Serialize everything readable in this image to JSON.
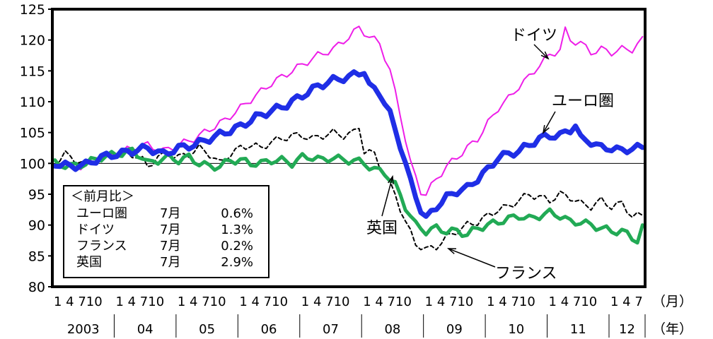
{
  "chart_data": {
    "type": "line",
    "title": "",
    "xlabel": "（月）",
    "ylabel": "",
    "ylim": [
      80,
      125
    ],
    "yticks": [
      80,
      85,
      90,
      95,
      100,
      105,
      110,
      115,
      120,
      125
    ],
    "reference_line": 100,
    "x_unit_month": "（月）",
    "x_unit_year": "（年）",
    "month_tick_label": "1 4 710",
    "month_tick_label_last": "1 4 7",
    "years": [
      "2003",
      "04",
      "05",
      "06",
      "07",
      "08",
      "09",
      "10",
      "11",
      "12"
    ],
    "x_start": "2003-01",
    "x_end": "2012-07",
    "grid": false,
    "colors": {
      "euro": "#1f2ee6",
      "germany": "#ee1ee8",
      "france": "#000000",
      "uk": "#22aa55"
    },
    "series": [
      {
        "name": "ユーロ圏",
        "key": "euro",
        "anchors": [
          [
            0,
            100.0
          ],
          [
            3,
            99.5
          ],
          [
            6,
            99.8
          ],
          [
            9,
            101.0
          ],
          [
            12,
            101.5
          ],
          [
            15,
            102.0
          ],
          [
            18,
            102.5
          ],
          [
            21,
            101.5
          ],
          [
            24,
            102.5
          ],
          [
            27,
            103.0
          ],
          [
            30,
            104.0
          ],
          [
            33,
            105.0
          ],
          [
            36,
            106.0
          ],
          [
            39,
            107.5
          ],
          [
            42,
            108.5
          ],
          [
            45,
            109.5
          ],
          [
            48,
            111.0
          ],
          [
            51,
            112.5
          ],
          [
            54,
            113.5
          ],
          [
            57,
            114.0
          ],
          [
            60,
            115.0
          ],
          [
            61,
            112.5
          ],
          [
            63,
            111.5
          ],
          [
            65,
            108.0
          ],
          [
            67,
            103.0
          ],
          [
            69,
            97.0
          ],
          [
            71,
            92.5
          ],
          [
            72,
            91.0
          ],
          [
            74,
            93.0
          ],
          [
            76,
            94.5
          ],
          [
            78,
            95.5
          ],
          [
            80,
            96.0
          ],
          [
            82,
            97.5
          ],
          [
            84,
            99.0
          ],
          [
            86,
            101.0
          ],
          [
            88,
            101.5
          ],
          [
            90,
            102.0
          ],
          [
            92,
            103.0
          ],
          [
            94,
            104.0
          ],
          [
            96,
            104.5
          ],
          [
            98,
            104.5
          ],
          [
            100,
            105.5
          ],
          [
            101,
            106.2
          ],
          [
            102,
            104.0
          ],
          [
            104,
            103.5
          ],
          [
            106,
            102.5
          ],
          [
            108,
            102.5
          ],
          [
            110,
            102.0
          ],
          [
            112,
            102.5
          ],
          [
            114,
            102.5
          ]
        ]
      },
      {
        "name": "ドイツ",
        "key": "germany",
        "anchors": [
          [
            0,
            100.5
          ],
          [
            3,
            99.5
          ],
          [
            6,
            99.5
          ],
          [
            9,
            101.0
          ],
          [
            12,
            101.5
          ],
          [
            15,
            102.5
          ],
          [
            18,
            103.0
          ],
          [
            21,
            102.0
          ],
          [
            24,
            103.0
          ],
          [
            27,
            104.0
          ],
          [
            30,
            105.5
          ],
          [
            33,
            107.0
          ],
          [
            36,
            109.0
          ],
          [
            39,
            111.0
          ],
          [
            42,
            113.0
          ],
          [
            45,
            114.5
          ],
          [
            48,
            116.0
          ],
          [
            51,
            117.5
          ],
          [
            54,
            118.5
          ],
          [
            57,
            120.5
          ],
          [
            59,
            122.0
          ],
          [
            61,
            120.5
          ],
          [
            63,
            119.5
          ],
          [
            65,
            115.0
          ],
          [
            67,
            108.0
          ],
          [
            69,
            100.0
          ],
          [
            71,
            95.5
          ],
          [
            72,
            95.0
          ],
          [
            74,
            97.5
          ],
          [
            76,
            99.5
          ],
          [
            78,
            101.0
          ],
          [
            80,
            102.5
          ],
          [
            82,
            104.0
          ],
          [
            84,
            106.5
          ],
          [
            86,
            109.0
          ],
          [
            88,
            110.5
          ],
          [
            90,
            112.5
          ],
          [
            92,
            114.0
          ],
          [
            94,
            116.0
          ],
          [
            96,
            117.5
          ],
          [
            98,
            118.5
          ],
          [
            99,
            121.5
          ],
          [
            100,
            120.0
          ],
          [
            102,
            119.5
          ],
          [
            104,
            118.0
          ],
          [
            106,
            118.5
          ],
          [
            108,
            118.0
          ],
          [
            110,
            118.5
          ],
          [
            112,
            118.5
          ],
          [
            114,
            120.0
          ]
        ]
      },
      {
        "name": "フランス",
        "key": "france",
        "anchors": [
          [
            0,
            100.0
          ],
          [
            2,
            101.5
          ],
          [
            4,
            100.5
          ],
          [
            6,
            100.0
          ],
          [
            9,
            100.5
          ],
          [
            12,
            101.5
          ],
          [
            15,
            101.5
          ],
          [
            17,
            100.5
          ],
          [
            18,
            99.5
          ],
          [
            20,
            101.0
          ],
          [
            22,
            101.5
          ],
          [
            24,
            101.0
          ],
          [
            26,
            101.5
          ],
          [
            28,
            102.5
          ],
          [
            30,
            101.5
          ],
          [
            32,
            100.0
          ],
          [
            34,
            101.5
          ],
          [
            36,
            102.5
          ],
          [
            38,
            103.0
          ],
          [
            40,
            102.5
          ],
          [
            42,
            103.5
          ],
          [
            44,
            104.0
          ],
          [
            46,
            104.5
          ],
          [
            48,
            104.5
          ],
          [
            50,
            104.0
          ],
          [
            52,
            104.5
          ],
          [
            54,
            105.0
          ],
          [
            56,
            104.5
          ],
          [
            58,
            105.0
          ],
          [
            59,
            106.0
          ],
          [
            60,
            102.0
          ],
          [
            62,
            101.5
          ],
          [
            64,
            98.0
          ],
          [
            66,
            95.0
          ],
          [
            68,
            90.5
          ],
          [
            70,
            87.0
          ],
          [
            72,
            86.0
          ],
          [
            74,
            86.5
          ],
          [
            76,
            88.0
          ],
          [
            78,
            89.0
          ],
          [
            80,
            90.0
          ],
          [
            82,
            90.5
          ],
          [
            84,
            91.5
          ],
          [
            86,
            92.5
          ],
          [
            88,
            93.0
          ],
          [
            90,
            94.0
          ],
          [
            92,
            95.0
          ],
          [
            94,
            94.5
          ],
          [
            96,
            94.0
          ],
          [
            98,
            95.0
          ],
          [
            100,
            94.5
          ],
          [
            102,
            93.5
          ],
          [
            104,
            93.0
          ],
          [
            106,
            94.0
          ],
          [
            108,
            93.0
          ],
          [
            110,
            93.5
          ],
          [
            112,
            91.5
          ],
          [
            114,
            91.5
          ]
        ]
      },
      {
        "name": "英国",
        "key": "uk",
        "anchors": [
          [
            0,
            100.0
          ],
          [
            3,
            99.5
          ],
          [
            6,
            100.0
          ],
          [
            9,
            101.0
          ],
          [
            12,
            101.5
          ],
          [
            15,
            102.0
          ],
          [
            17,
            101.0
          ],
          [
            18,
            100.0
          ],
          [
            20,
            100.5
          ],
          [
            22,
            101.0
          ],
          [
            24,
            100.5
          ],
          [
            26,
            101.0
          ],
          [
            28,
            100.0
          ],
          [
            30,
            99.5
          ],
          [
            32,
            99.5
          ],
          [
            34,
            100.5
          ],
          [
            36,
            100.5
          ],
          [
            38,
            100.0
          ],
          [
            40,
            100.0
          ],
          [
            42,
            100.5
          ],
          [
            44,
            100.5
          ],
          [
            46,
            100.0
          ],
          [
            48,
            101.0
          ],
          [
            50,
            101.0
          ],
          [
            52,
            100.5
          ],
          [
            54,
            101.0
          ],
          [
            56,
            100.5
          ],
          [
            58,
            100.5
          ],
          [
            60,
            100.0
          ],
          [
            62,
            99.0
          ],
          [
            64,
            98.5
          ],
          [
            66,
            96.5
          ],
          [
            68,
            93.0
          ],
          [
            70,
            90.0
          ],
          [
            72,
            89.0
          ],
          [
            74,
            89.5
          ],
          [
            76,
            89.0
          ],
          [
            78,
            89.0
          ],
          [
            80,
            88.5
          ],
          [
            82,
            89.5
          ],
          [
            84,
            90.0
          ],
          [
            86,
            90.5
          ],
          [
            88,
            91.0
          ],
          [
            90,
            91.5
          ],
          [
            92,
            91.0
          ],
          [
            94,
            91.5
          ],
          [
            96,
            92.0
          ],
          [
            98,
            91.5
          ],
          [
            100,
            90.5
          ],
          [
            102,
            90.5
          ],
          [
            104,
            90.0
          ],
          [
            106,
            89.5
          ],
          [
            108,
            89.0
          ],
          [
            110,
            89.0
          ],
          [
            112,
            88.0
          ],
          [
            113,
            87.5
          ],
          [
            114,
            89.5
          ]
        ]
      }
    ],
    "annotations": [
      {
        "key": "germany",
        "text": "ドイツ"
      },
      {
        "key": "euro",
        "text": "ユーロ圏"
      },
      {
        "key": "uk",
        "text": "英国"
      },
      {
        "key": "france",
        "text": "フランス"
      }
    ],
    "legend_box": {
      "title": "＜前月比＞",
      "rows": [
        {
          "name": "ユーロ圏",
          "month": "7月",
          "value": "0.6%"
        },
        {
          "name": "ドイツ",
          "month": "7月",
          "value": "1.3%"
        },
        {
          "name": "フランス",
          "month": "7月",
          "value": "0.2%"
        },
        {
          "name": "英国",
          "month": "7月",
          "value": "2.9%"
        }
      ]
    }
  }
}
